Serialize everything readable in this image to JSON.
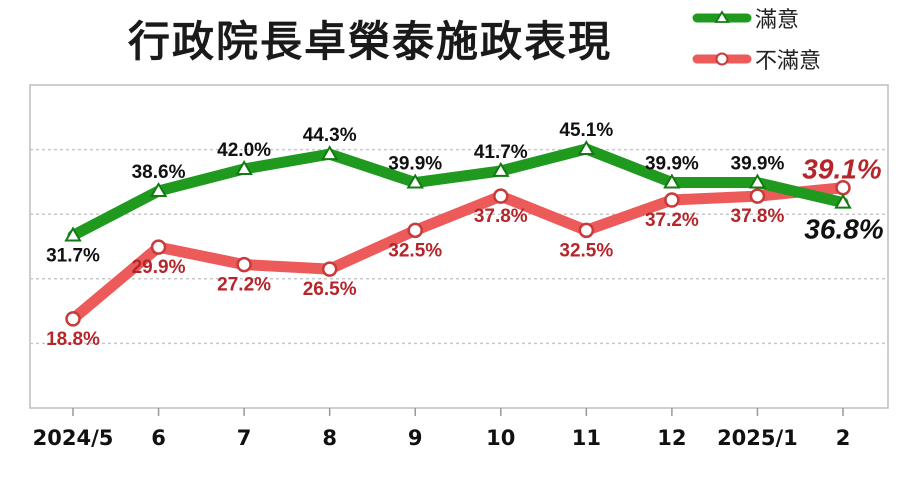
{
  "chart_data": {
    "type": "line",
    "title": "行政院長卓榮泰施政表現",
    "categories": [
      "2024/5",
      "6",
      "7",
      "8",
      "9",
      "10",
      "11",
      "12",
      "2025/1",
      "2"
    ],
    "ylim": [
      5,
      55
    ],
    "grid": true,
    "legend_position": "top-right",
    "series": [
      {
        "name": "滿意",
        "color": "#1f9a1f",
        "marker": "triangle",
        "values": [
          31.7,
          38.6,
          42.0,
          44.3,
          39.9,
          41.7,
          45.1,
          39.9,
          39.9,
          36.8
        ],
        "labels": [
          "31.7%",
          "38.6%",
          "42.0%",
          "44.3%",
          "39.9%",
          "41.7%",
          "45.1%",
          "39.9%",
          "39.9%",
          "36.8%"
        ]
      },
      {
        "name": "不滿意",
        "color": "#ec5a5a",
        "marker": "circle",
        "values": [
          18.8,
          29.9,
          27.2,
          26.5,
          32.5,
          37.8,
          32.5,
          37.2,
          37.8,
          39.1
        ],
        "labels": [
          "18.8%",
          "29.9%",
          "27.2%",
          "26.5%",
          "32.5%",
          "37.8%",
          "32.5%",
          "37.2%",
          "37.8%",
          "39.1%"
        ]
      }
    ]
  }
}
